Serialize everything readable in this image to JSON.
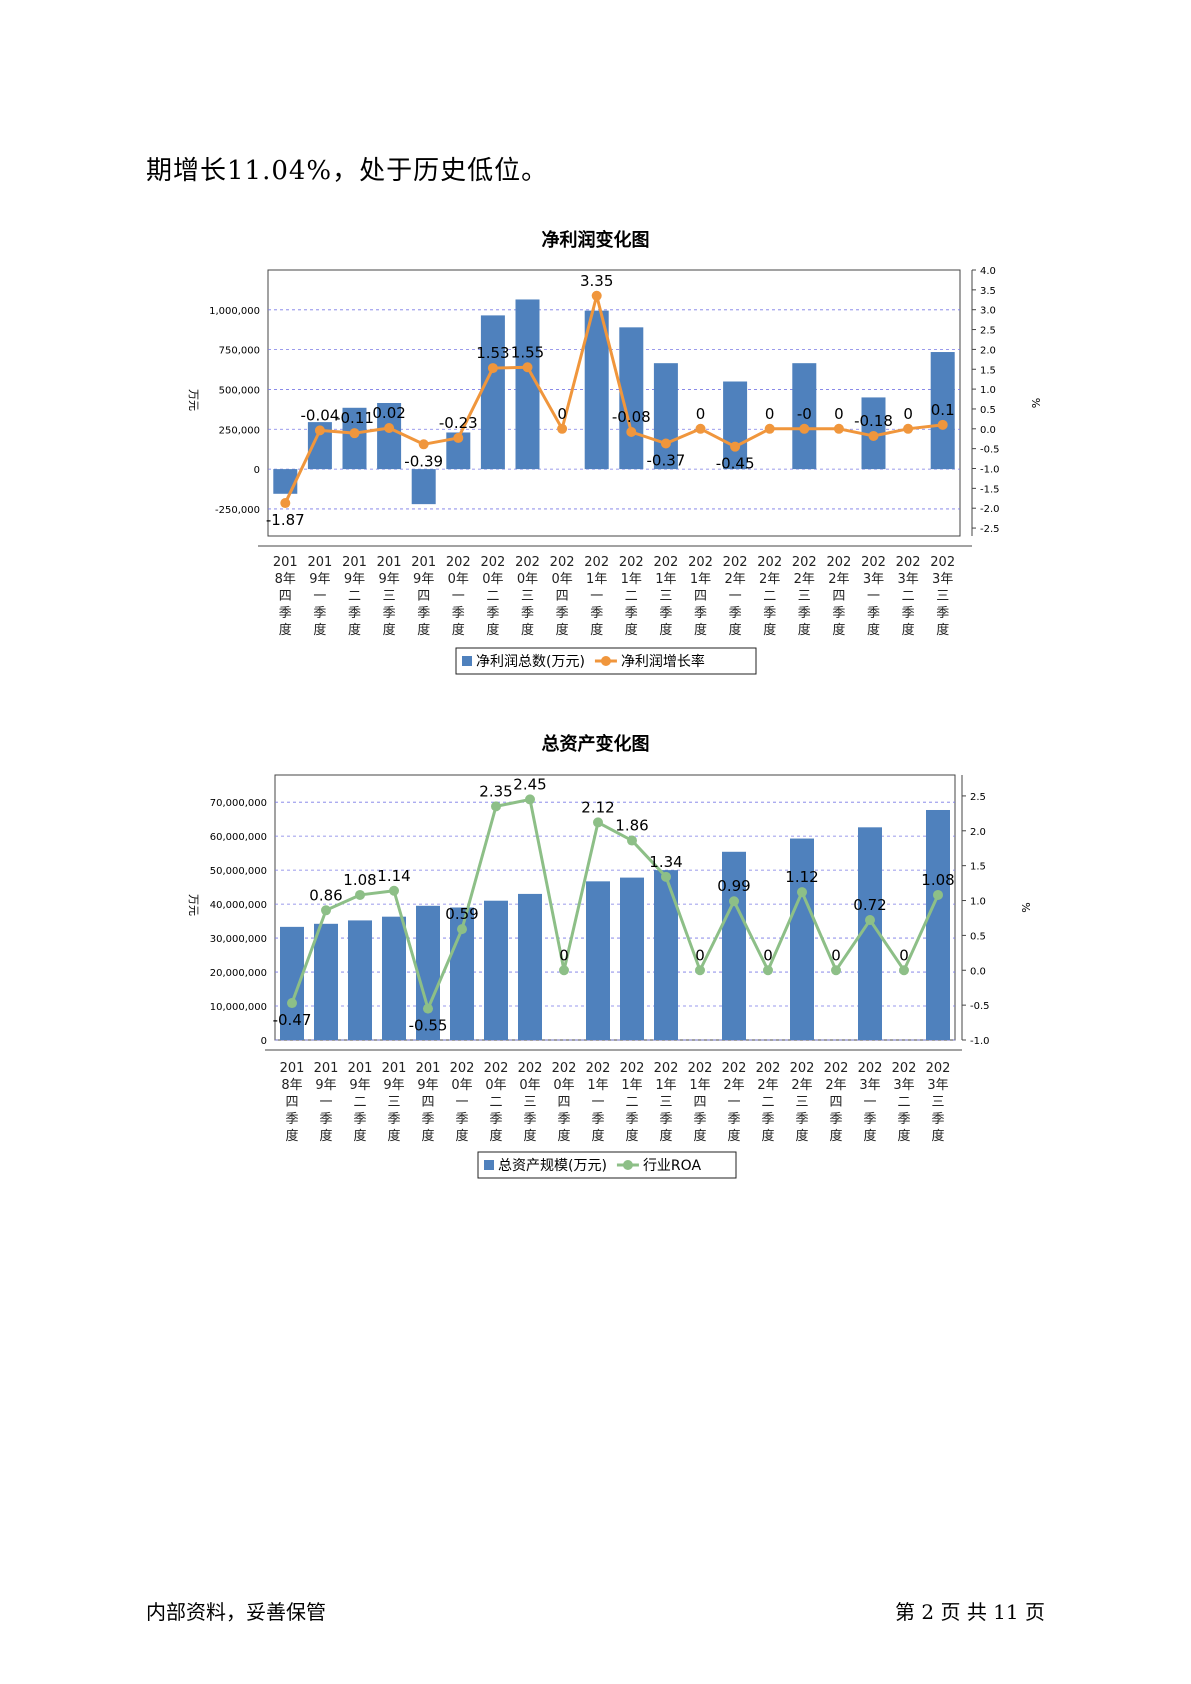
{
  "intro_text": "期增长11.04%，处于历史低位。",
  "charts": [
    {
      "title": "净利润变化图",
      "type": "bar+line",
      "y_left_unit": "万元",
      "y_right_unit": "%",
      "left_ticks": [
        -250000,
        0,
        250000,
        500000,
        750000,
        1000000
      ],
      "left_tick_labels": [
        "-250,000",
        "0",
        "250,000",
        "500,000",
        "750,000",
        "1,000,000"
      ],
      "ylim_left": [
        -420000,
        1250000
      ],
      "right_ticks": [
        -2.5,
        -2.0,
        -1.5,
        -1.0,
        -0.5,
        0.0,
        0.5,
        1.0,
        1.5,
        2.0,
        2.5,
        3.0,
        3.5,
        4.0
      ],
      "right_tick_labels": [
        "-2.5",
        "-2.0",
        "-1.5",
        "-1.0",
        "-0.5",
        "0.0",
        "0.5",
        "1.0",
        "1.5",
        "2.0",
        "2.5",
        "3.0",
        "3.5",
        "4.0"
      ],
      "ylim_right": [
        -2.7,
        4.0
      ],
      "categories": [
        [
          "201",
          "8年",
          "四",
          "季",
          "度"
        ],
        [
          "201",
          "9年",
          "一",
          "季",
          "度"
        ],
        [
          "201",
          "9年",
          "二",
          "季",
          "度"
        ],
        [
          "201",
          "9年",
          "三",
          "季",
          "度"
        ],
        [
          "201",
          "9年",
          "四",
          "季",
          "度"
        ],
        [
          "202",
          "0年",
          "一",
          "季",
          "度"
        ],
        [
          "202",
          "0年",
          "二",
          "季",
          "度"
        ],
        [
          "202",
          "0年",
          "三",
          "季",
          "度"
        ],
        [
          "202",
          "0年",
          "四",
          "季",
          "度"
        ],
        [
          "202",
          "1年",
          "一",
          "季",
          "度"
        ],
        [
          "202",
          "1年",
          "二",
          "季",
          "度"
        ],
        [
          "202",
          "1年",
          "三",
          "季",
          "度"
        ],
        [
          "202",
          "1年",
          "四",
          "季",
          "度"
        ],
        [
          "202",
          "2年",
          "一",
          "季",
          "度"
        ],
        [
          "202",
          "2年",
          "二",
          "季",
          "度"
        ],
        [
          "202",
          "2年",
          "三",
          "季",
          "度"
        ],
        [
          "202",
          "2年",
          "四",
          "季",
          "度"
        ],
        [
          "202",
          "3年",
          "一",
          "季",
          "度"
        ],
        [
          "202",
          "3年",
          "二",
          "季",
          "度"
        ],
        [
          "202",
          "3年",
          "三",
          "季",
          "度"
        ]
      ],
      "bar_series": {
        "name": "净利润总数(万元)",
        "color": "#4f81bd",
        "values": [
          -155000,
          295000,
          385000,
          415000,
          -220000,
          230000,
          965000,
          1065000,
          0,
          995000,
          890000,
          665000,
          0,
          550000,
          0,
          665000,
          0,
          450000,
          0,
          735000
        ]
      },
      "line_series": {
        "name": "净利润增长率",
        "color": "#f0963c",
        "values": [
          -1.87,
          -0.04,
          -0.11,
          0.02,
          -0.39,
          -0.23,
          1.53,
          1.55,
          0,
          3.35,
          -0.08,
          -0.37,
          0,
          -0.45,
          0,
          0,
          0,
          -0.18,
          0,
          0.1
        ],
        "labels": [
          "-1.87",
          "-0.04",
          "-0.11",
          "0.02",
          "-0.39",
          "-0.23",
          "1.53",
          "1.55",
          "0",
          "3.35",
          "-0.08",
          "-0.37",
          "0",
          "-0.45",
          "0",
          "-0",
          "0",
          "-0.18",
          "0",
          "0.1"
        ]
      }
    },
    {
      "title": "总资产变化图",
      "type": "bar+line",
      "y_left_unit": "万元",
      "y_right_unit": "%",
      "left_ticks": [
        0,
        10000000,
        20000000,
        30000000,
        40000000,
        50000000,
        60000000,
        70000000
      ],
      "left_tick_labels": [
        "0",
        "10,000,000",
        "20,000,000",
        "30,000,000",
        "40,000,000",
        "50,000,000",
        "60,000,000",
        "70,000,000"
      ],
      "ylim_left": [
        0,
        78000000
      ],
      "right_ticks": [
        -1.0,
        -0.5,
        0.0,
        0.5,
        1.0,
        1.5,
        2.0,
        2.5
      ],
      "right_tick_labels": [
        "-1.0",
        "-0.5",
        "0.0",
        "0.5",
        "1.0",
        "1.5",
        "2.0",
        "2.5"
      ],
      "ylim_right": [
        -1.0,
        2.8
      ],
      "categories": [
        [
          "201",
          "8年",
          "四",
          "季",
          "度"
        ],
        [
          "201",
          "9年",
          "一",
          "季",
          "度"
        ],
        [
          "201",
          "9年",
          "二",
          "季",
          "度"
        ],
        [
          "201",
          "9年",
          "三",
          "季",
          "度"
        ],
        [
          "201",
          "9年",
          "四",
          "季",
          "度"
        ],
        [
          "202",
          "0年",
          "一",
          "季",
          "度"
        ],
        [
          "202",
          "0年",
          "二",
          "季",
          "度"
        ],
        [
          "202",
          "0年",
          "三",
          "季",
          "度"
        ],
        [
          "202",
          "0年",
          "四",
          "季",
          "度"
        ],
        [
          "202",
          "1年",
          "一",
          "季",
          "度"
        ],
        [
          "202",
          "1年",
          "二",
          "季",
          "度"
        ],
        [
          "202",
          "1年",
          "三",
          "季",
          "度"
        ],
        [
          "202",
          "1年",
          "四",
          "季",
          "度"
        ],
        [
          "202",
          "2年",
          "一",
          "季",
          "度"
        ],
        [
          "202",
          "2年",
          "二",
          "季",
          "度"
        ],
        [
          "202",
          "2年",
          "三",
          "季",
          "度"
        ],
        [
          "202",
          "2年",
          "四",
          "季",
          "度"
        ],
        [
          "202",
          "3年",
          "一",
          "季",
          "度"
        ],
        [
          "202",
          "3年",
          "二",
          "季",
          "度"
        ],
        [
          "202",
          "3年",
          "三",
          "季",
          "度"
        ]
      ],
      "bar_series": {
        "name": "总资产规模(万元)",
        "color": "#4f81bd",
        "values": [
          33300000,
          34200000,
          35200000,
          36300000,
          39500000,
          39000000,
          41000000,
          43000000,
          0,
          46700000,
          47800000,
          50000000,
          0,
          55400000,
          0,
          59300000,
          0,
          62600000,
          0,
          67700000
        ]
      },
      "line_series": {
        "name": "行业ROA",
        "color": "#8dbf87",
        "values": [
          -0.47,
          0.86,
          1.08,
          1.14,
          -0.55,
          0.59,
          2.35,
          2.45,
          0,
          2.12,
          1.86,
          1.34,
          0,
          0.99,
          0,
          1.12,
          0,
          0.72,
          0,
          1.08
        ],
        "labels": [
          "-0.47",
          "0.86",
          "1.08",
          "1.14",
          "-0.55",
          "0.59",
          "2.35",
          "2.45",
          "0",
          "2.12",
          "1.86",
          "1.34",
          "0",
          "0.99",
          "0",
          "1.12",
          "0",
          "0.72",
          "0",
          "1.08"
        ]
      }
    }
  ],
  "footer": {
    "left": "内部资料，妥善保管",
    "right": "第 2 页   共 11 页"
  }
}
